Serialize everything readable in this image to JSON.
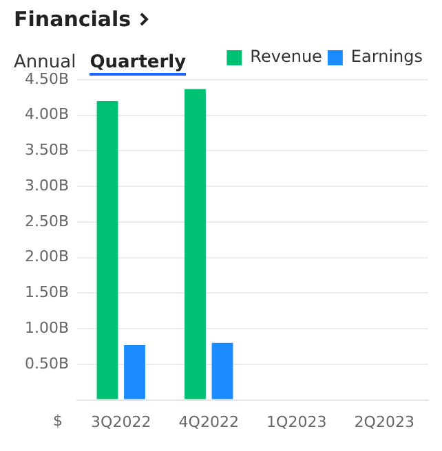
{
  "chart_data": {
    "type": "bar",
    "title": "Financials",
    "ylabel": "$",
    "annotations": [
      "Annual",
      "Quarterly"
    ],
    "categories": [
      "3Q2022",
      "4Q2022",
      "1Q2023",
      "2Q2023"
    ],
    "series": [
      {
        "name": "Revenue",
        "color": "#00c073",
        "values": [
          4.2,
          4.37,
          null,
          null
        ]
      },
      {
        "name": "Earnings",
        "color": "#1a8cff",
        "values": [
          0.77,
          0.8,
          null,
          null
        ]
      }
    ],
    "ylim": [
      0,
      4.5
    ],
    "yticks": [
      {
        "value": 0,
        "label": null
      },
      {
        "value": 0.5,
        "label": "0.50B"
      },
      {
        "value": 1,
        "label": "1.00B"
      },
      {
        "value": 1.5,
        "label": "1.50B"
      },
      {
        "value": 2,
        "label": "2.00B"
      },
      {
        "value": 2.5,
        "label": "2.50B"
      },
      {
        "value": 3,
        "label": "3.00B"
      },
      {
        "value": 3.5,
        "label": "3.50B"
      },
      {
        "value": 4,
        "label": "4.00B"
      },
      {
        "value": 4.5,
        "label": "4.50B"
      }
    ],
    "grid": "y",
    "legend": "top right"
  }
}
